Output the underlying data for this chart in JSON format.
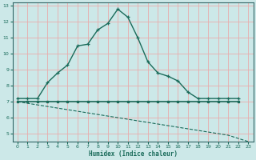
{
  "xlabel": "Humidex (Indice chaleur)",
  "bg_color": "#cce8e8",
  "grid_color": "#e8aaaa",
  "line_color": "#1a6b5a",
  "spine_color": "#336666",
  "xlim": [
    -0.5,
    23.5
  ],
  "ylim": [
    4.5,
    13.2
  ],
  "xticks": [
    0,
    1,
    2,
    3,
    4,
    5,
    6,
    7,
    8,
    9,
    10,
    11,
    12,
    13,
    14,
    15,
    16,
    17,
    18,
    19,
    20,
    21,
    22,
    23
  ],
  "yticks": [
    5,
    6,
    7,
    8,
    9,
    10,
    11,
    12,
    13
  ],
  "flat_x": [
    0,
    1,
    2,
    3,
    4,
    5,
    6,
    7,
    8,
    9,
    10,
    11,
    12,
    13,
    14,
    15,
    16,
    17,
    18,
    19,
    20,
    21,
    22
  ],
  "flat_y": [
    7.0,
    7.0,
    7.0,
    7.0,
    7.0,
    7.0,
    7.0,
    7.0,
    7.0,
    7.0,
    7.0,
    7.0,
    7.0,
    7.0,
    7.0,
    7.0,
    7.0,
    7.0,
    7.0,
    7.0,
    7.0,
    7.0,
    7.0
  ],
  "peak_x": [
    0,
    1,
    2,
    3,
    4,
    5,
    6,
    7,
    8,
    9,
    10,
    11,
    12,
    13,
    14,
    15,
    16,
    17,
    18,
    19,
    20,
    21,
    22
  ],
  "peak_y": [
    7.2,
    7.2,
    7.2,
    8.2,
    8.8,
    9.3,
    10.5,
    10.6,
    11.5,
    11.9,
    12.8,
    12.3,
    11.0,
    9.5,
    8.8,
    8.6,
    8.3,
    7.6,
    7.2,
    7.2,
    7.2,
    7.2,
    7.2
  ],
  "dash_x": [
    0,
    1,
    2,
    3,
    4,
    5,
    6,
    7,
    8,
    9,
    10,
    11,
    12,
    13,
    14,
    15,
    16,
    17,
    18,
    19,
    20,
    21,
    22,
    23
  ],
  "dash_y": [
    7.0,
    6.9,
    6.8,
    6.7,
    6.6,
    6.5,
    6.4,
    6.3,
    6.2,
    6.1,
    6.0,
    5.9,
    5.8,
    5.7,
    5.6,
    5.5,
    5.4,
    5.3,
    5.2,
    5.1,
    5.0,
    4.9,
    4.7,
    4.5
  ]
}
